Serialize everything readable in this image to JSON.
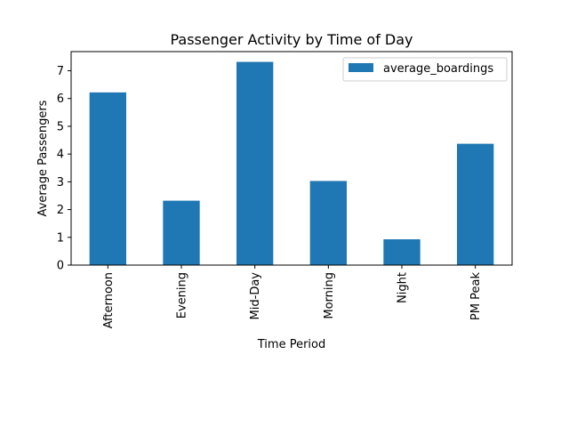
{
  "chart_data": {
    "type": "bar",
    "title": "Passenger Activity by Time of Day",
    "xlabel": "Time Period",
    "ylabel": "Average Passengers",
    "categories": [
      "Afternoon",
      "Evening",
      "Mid-Day",
      "Morning",
      "Night",
      "PM Peak"
    ],
    "series": [
      {
        "name": "average_boardings",
        "values": [
          6.22,
          2.32,
          7.32,
          3.03,
          0.93,
          4.37
        ],
        "color": "#1f77b4"
      }
    ],
    "ylim": [
      0,
      7.69
    ],
    "yticks": [
      0,
      1,
      2,
      3,
      4,
      5,
      6,
      7
    ],
    "grid": false,
    "legend_position": "top-right"
  }
}
